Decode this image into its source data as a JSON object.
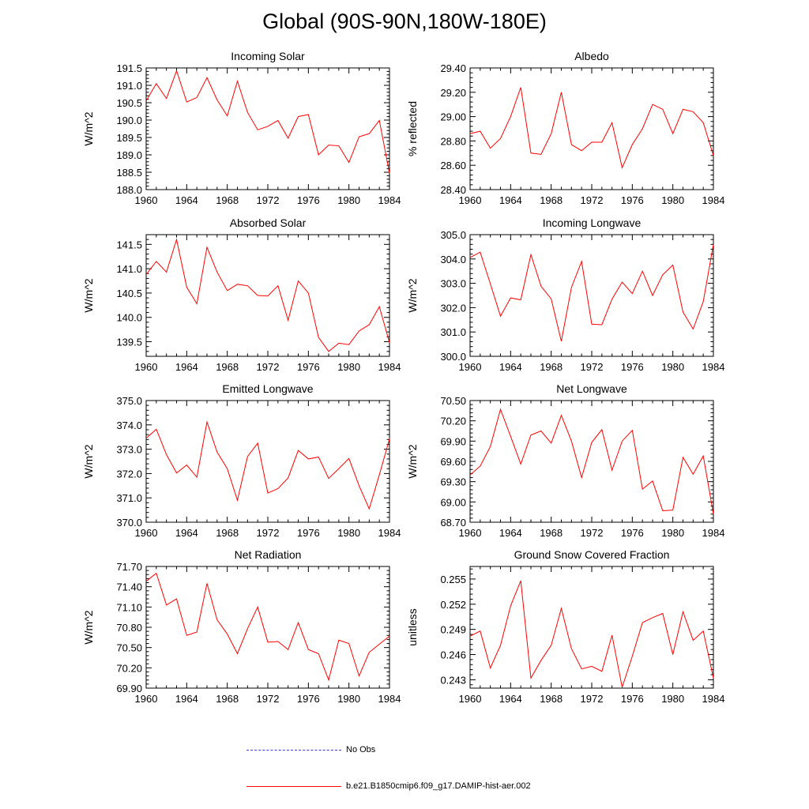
{
  "page_title": "Global (90S-90N,180W-180E)",
  "legend": [
    {
      "label": "No Obs",
      "color": "#3a3acc",
      "style": "dashed"
    },
    {
      "label": "b.e21.B1850cmip6.f09_g17.DAMIP-hist-aer.002",
      "color": "#ff0000",
      "style": "solid"
    }
  ],
  "chart_data": [
    {
      "type": "line",
      "title": "Incoming Solar",
      "xlabel": "",
      "ylabel": "W/m^2",
      "xlim": [
        1960,
        1984
      ],
      "xticks": [
        1960,
        1964,
        1968,
        1972,
        1976,
        1980,
        1984
      ],
      "ylim": [
        188.0,
        191.5
      ],
      "yticks": [
        188.0,
        188.5,
        189.0,
        189.5,
        190.0,
        190.5,
        191.0,
        191.5
      ],
      "ydecimals": 1,
      "x": [
        1960,
        1961,
        1962,
        1963,
        1964,
        1965,
        1966,
        1967,
        1968,
        1969,
        1970,
        1971,
        1972,
        1973,
        1974,
        1975,
        1976,
        1977,
        1978,
        1979,
        1980,
        1981,
        1982,
        1983,
        1984
      ],
      "series": [
        {
          "name": "b.e21.B1850cmip6.f09_g17.DAMIP-hist-aer.002",
          "color": "#ff0000",
          "values": [
            190.55,
            191.05,
            190.62,
            191.42,
            190.52,
            190.65,
            191.22,
            190.58,
            190.12,
            191.12,
            190.22,
            189.72,
            189.82,
            189.99,
            189.48,
            190.1,
            190.16,
            189.0,
            189.28,
            189.26,
            188.78,
            189.52,
            189.61,
            189.99,
            188.47
          ]
        }
      ]
    },
    {
      "type": "line",
      "title": "Albedo",
      "xlabel": "",
      "ylabel": "% reflected",
      "xlim": [
        1960,
        1984
      ],
      "xticks": [
        1960,
        1964,
        1968,
        1972,
        1976,
        1980,
        1984
      ],
      "ylim": [
        28.4,
        29.4
      ],
      "yticks": [
        28.4,
        28.6,
        28.8,
        29.0,
        29.2,
        29.4
      ],
      "ydecimals": 2,
      "x": [
        1960,
        1961,
        1962,
        1963,
        1964,
        1965,
        1966,
        1967,
        1968,
        1969,
        1970,
        1971,
        1972,
        1973,
        1974,
        1975,
        1976,
        1977,
        1978,
        1979,
        1980,
        1981,
        1982,
        1983,
        1984
      ],
      "series": [
        {
          "name": "b.e21.B1850cmip6.f09_g17.DAMIP-hist-aer.002",
          "color": "#ff0000",
          "values": [
            28.86,
            28.88,
            28.74,
            28.82,
            29.0,
            29.24,
            28.7,
            28.69,
            28.86,
            29.2,
            28.77,
            28.72,
            28.79,
            28.79,
            28.95,
            28.58,
            28.77,
            28.9,
            29.1,
            29.06,
            28.86,
            29.06,
            29.04,
            28.95,
            28.68
          ]
        }
      ]
    },
    {
      "type": "line",
      "title": "Absorbed Solar",
      "xlabel": "",
      "ylabel": "W/m^2",
      "xlim": [
        1960,
        1984
      ],
      "xticks": [
        1960,
        1964,
        1968,
        1972,
        1976,
        1980,
        1984
      ],
      "ylim": [
        139.2,
        141.7
      ],
      "yticks": [
        139.5,
        140.0,
        140.5,
        141.0,
        141.5
      ],
      "ydecimals": 1,
      "x": [
        1960,
        1961,
        1962,
        1963,
        1964,
        1965,
        1966,
        1967,
        1968,
        1969,
        1970,
        1971,
        1972,
        1973,
        1974,
        1975,
        1976,
        1977,
        1978,
        1979,
        1980,
        1981,
        1982,
        1983,
        1984
      ],
      "series": [
        {
          "name": "b.e21.B1850cmip6.f09_g17.DAMIP-hist-aer.002",
          "color": "#ff0000",
          "values": [
            140.88,
            141.15,
            140.93,
            141.6,
            140.62,
            140.28,
            141.44,
            140.93,
            140.55,
            140.68,
            140.65,
            140.45,
            140.44,
            140.65,
            139.94,
            140.75,
            140.5,
            139.59,
            139.3,
            139.47,
            139.44,
            139.72,
            139.85,
            140.22,
            139.48
          ]
        }
      ]
    },
    {
      "type": "line",
      "title": "Incoming Longwave",
      "xlabel": "",
      "ylabel": "W/m^2",
      "xlim": [
        1960,
        1984
      ],
      "xticks": [
        1960,
        1964,
        1968,
        1972,
        1976,
        1980,
        1984
      ],
      "ylim": [
        300.0,
        305.0
      ],
      "yticks": [
        300.0,
        301.0,
        302.0,
        303.0,
        304.0,
        305.0
      ],
      "ydecimals": 1,
      "x": [
        1960,
        1961,
        1962,
        1963,
        1964,
        1965,
        1966,
        1967,
        1968,
        1969,
        1970,
        1971,
        1972,
        1973,
        1974,
        1975,
        1976,
        1977,
        1978,
        1979,
        1980,
        1981,
        1982,
        1983,
        1984
      ],
      "series": [
        {
          "name": "b.e21.B1850cmip6.f09_g17.DAMIP-hist-aer.002",
          "color": "#ff0000",
          "values": [
            304.06,
            304.28,
            302.98,
            301.65,
            302.4,
            302.32,
            304.18,
            302.88,
            302.36,
            300.62,
            302.83,
            303.9,
            301.32,
            301.3,
            302.35,
            303.05,
            302.58,
            303.5,
            302.5,
            303.35,
            303.75,
            301.82,
            301.12,
            302.25,
            304.6
          ]
        }
      ]
    },
    {
      "type": "line",
      "title": "Emitted Longwave",
      "xlabel": "",
      "ylabel": "W/m^2",
      "xlim": [
        1960,
        1984
      ],
      "xticks": [
        1960,
        1964,
        1968,
        1972,
        1976,
        1980,
        1984
      ],
      "ylim": [
        370.0,
        375.0
      ],
      "yticks": [
        370.0,
        371.0,
        372.0,
        373.0,
        374.0,
        375.0
      ],
      "ydecimals": 1,
      "x": [
        1960,
        1961,
        1962,
        1963,
        1964,
        1965,
        1966,
        1967,
        1968,
        1969,
        1970,
        1971,
        1972,
        1973,
        1974,
        1975,
        1976,
        1977,
        1978,
        1979,
        1980,
        1981,
        1982,
        1983,
        1984
      ],
      "series": [
        {
          "name": "b.e21.B1850cmip6.f09_g17.DAMIP-hist-aer.002",
          "color": "#ff0000",
          "values": [
            373.45,
            373.82,
            372.78,
            372.02,
            372.35,
            371.85,
            374.12,
            372.88,
            372.2,
            370.9,
            372.7,
            373.25,
            371.2,
            371.38,
            371.82,
            372.95,
            372.6,
            372.68,
            371.8,
            372.2,
            372.62,
            371.5,
            370.55,
            371.95,
            373.42
          ]
        }
      ]
    },
    {
      "type": "line",
      "title": "Net Longwave",
      "xlabel": "",
      "ylabel": "W/m^2",
      "xlim": [
        1960,
        1984
      ],
      "xticks": [
        1960,
        1964,
        1968,
        1972,
        1976,
        1980,
        1984
      ],
      "ylim": [
        68.7,
        70.5
      ],
      "yticks": [
        68.7,
        69.0,
        69.3,
        69.6,
        69.9,
        70.2,
        70.5
      ],
      "ydecimals": 2,
      "x": [
        1960,
        1961,
        1962,
        1963,
        1964,
        1965,
        1966,
        1967,
        1968,
        1969,
        1970,
        1971,
        1972,
        1973,
        1974,
        1975,
        1976,
        1977,
        1978,
        1979,
        1980,
        1981,
        1982,
        1983,
        1984
      ],
      "series": [
        {
          "name": "b.e21.B1850cmip6.f09_g17.DAMIP-hist-aer.002",
          "color": "#ff0000",
          "values": [
            69.4,
            69.53,
            69.82,
            70.37,
            69.97,
            69.56,
            69.99,
            70.05,
            69.87,
            70.28,
            69.9,
            69.36,
            69.88,
            70.07,
            69.47,
            69.9,
            70.06,
            69.19,
            69.31,
            68.87,
            68.88,
            69.66,
            69.41,
            69.68,
            68.82
          ]
        }
      ]
    },
    {
      "type": "line",
      "title": "Net Radiation",
      "xlabel": "",
      "ylabel": "W/m^2",
      "xlim": [
        1960,
        1984
      ],
      "xticks": [
        1960,
        1964,
        1968,
        1972,
        1976,
        1980,
        1984
      ],
      "ylim": [
        69.9,
        71.7
      ],
      "yticks": [
        69.9,
        70.2,
        70.5,
        70.8,
        71.1,
        71.4,
        71.7
      ],
      "ydecimals": 2,
      "x": [
        1960,
        1961,
        1962,
        1963,
        1964,
        1965,
        1966,
        1967,
        1968,
        1969,
        1970,
        1971,
        1972,
        1973,
        1974,
        1975,
        1976,
        1977,
        1978,
        1979,
        1980,
        1981,
        1982,
        1983,
        1984
      ],
      "series": [
        {
          "name": "b.e21.B1850cmip6.f09_g17.DAMIP-hist-aer.002",
          "color": "#ff0000",
          "values": [
            71.48,
            71.6,
            71.13,
            71.22,
            70.68,
            70.73,
            71.45,
            70.91,
            70.7,
            70.41,
            70.78,
            71.1,
            70.58,
            70.59,
            70.47,
            70.87,
            70.47,
            70.41,
            70.02,
            70.61,
            70.56,
            70.08,
            70.43,
            70.55,
            70.67
          ]
        }
      ]
    },
    {
      "type": "line",
      "title": "Ground Snow Covered Fraction",
      "xlabel": "",
      "ylabel": "unitless",
      "xlim": [
        1960,
        1984
      ],
      "xticks": [
        1960,
        1964,
        1968,
        1972,
        1976,
        1980,
        1984
      ],
      "ylim": [
        0.242,
        0.2565
      ],
      "yticks": [
        0.243,
        0.246,
        0.249,
        0.252,
        0.255
      ],
      "ydecimals": 3,
      "x": [
        1960,
        1961,
        1962,
        1963,
        1964,
        1965,
        1966,
        1967,
        1968,
        1969,
        1970,
        1971,
        1972,
        1973,
        1974,
        1975,
        1976,
        1977,
        1978,
        1979,
        1980,
        1981,
        1982,
        1983,
        1984
      ],
      "series": [
        {
          "name": "b.e21.B1850cmip6.f09_g17.DAMIP-hist-aer.002",
          "color": "#ff0000",
          "values": [
            0.2482,
            0.2488,
            0.2444,
            0.2471,
            0.2518,
            0.2548,
            0.2432,
            0.2453,
            0.2471,
            0.2515,
            0.2467,
            0.2443,
            0.2446,
            0.244,
            0.2483,
            0.2421,
            0.2458,
            0.2498,
            0.2504,
            0.2509,
            0.246,
            0.2511,
            0.2477,
            0.2488,
            0.2432
          ]
        }
      ]
    }
  ]
}
